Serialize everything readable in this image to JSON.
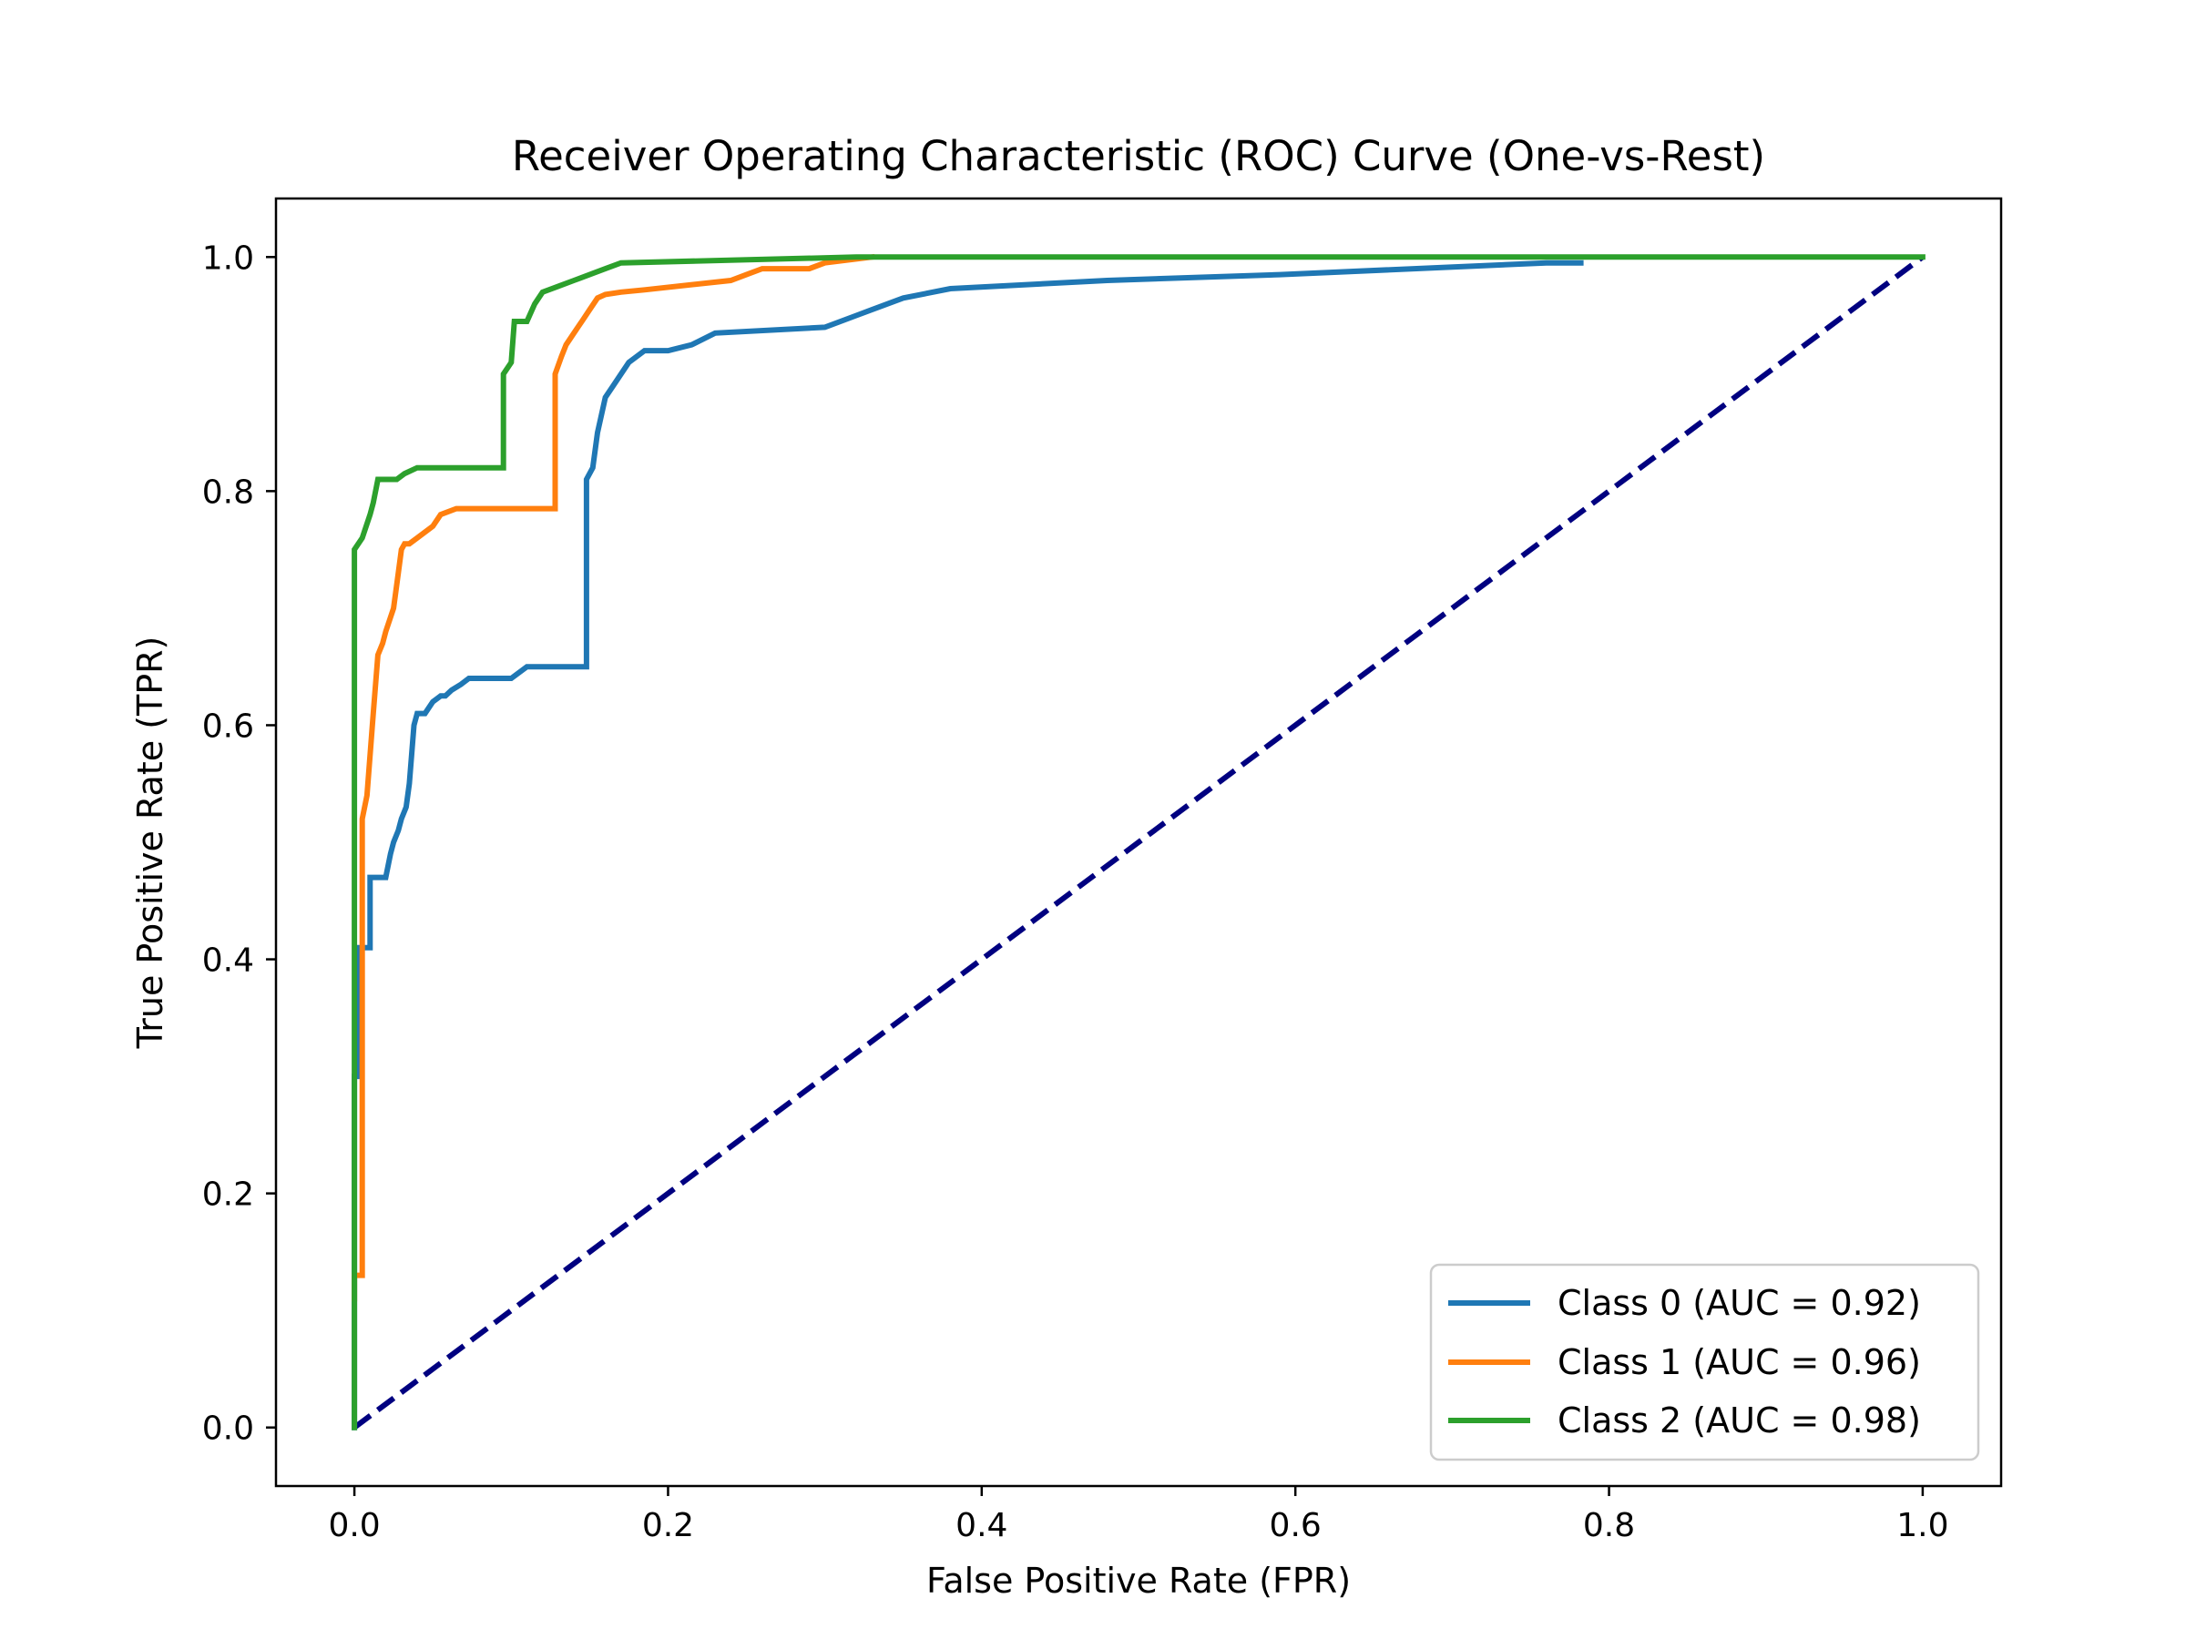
{
  "chart_data": {
    "type": "line",
    "title": "Receiver Operating Characteristic (ROC) Curve (One-vs-Rest)",
    "xlabel": "False Positive Rate (FPR)",
    "ylabel": "True Positive Rate (TPR)",
    "xlim": [
      -0.05,
      1.05
    ],
    "ylim": [
      -0.05,
      1.05
    ],
    "x_ticks": [
      "0.0",
      "0.2",
      "0.4",
      "0.6",
      "0.8",
      "1.0"
    ],
    "y_ticks": [
      "0.0",
      "0.2",
      "0.4",
      "0.6",
      "0.8",
      "1.0"
    ],
    "grid": false,
    "legend_position": "lower-right",
    "chance_line": {
      "style": "dashed",
      "color": "#000080",
      "x": [
        0,
        1
      ],
      "y": [
        0,
        1
      ]
    },
    "series": [
      {
        "name": "Class 0 (AUC = 0.92)",
        "color": "#1f77b4",
        "x": [
          0,
          0,
          0.003,
          0.003,
          0.01,
          0.01,
          0.02,
          0.023,
          0.025,
          0.028,
          0.03,
          0.033,
          0.035,
          0.038,
          0.04,
          0.042,
          0.045,
          0.05,
          0.055,
          0.058,
          0.062,
          0.068,
          0.073,
          0.08,
          0.1,
          0.11,
          0.148,
          0.148,
          0.152,
          0.155,
          0.16,
          0.165,
          0.17,
          0.175,
          0.185,
          0.2,
          0.215,
          0.23,
          0.3,
          0.32,
          0.33,
          0.35,
          0.38,
          0.48,
          0.59,
          0.76,
          0.782
        ],
        "y": [
          0,
          0.3,
          0.3,
          0.41,
          0.41,
          0.47,
          0.47,
          0.49,
          0.5,
          0.51,
          0.52,
          0.53,
          0.55,
          0.6,
          0.61,
          0.61,
          0.61,
          0.62,
          0.625,
          0.625,
          0.63,
          0.635,
          0.64,
          0.64,
          0.64,
          0.65,
          0.65,
          0.81,
          0.82,
          0.85,
          0.88,
          0.89,
          0.9,
          0.91,
          0.92,
          0.92,
          0.925,
          0.935,
          0.94,
          0.95,
          0.955,
          0.965,
          0.973,
          0.98,
          0.985,
          0.995,
          0.995
        ]
      },
      {
        "name": "Class 1 (AUC = 0.96)",
        "color": "#ff7f0e",
        "x": [
          0,
          0,
          0.005,
          0.005,
          0.008,
          0.008,
          0.012,
          0.015,
          0.018,
          0.02,
          0.025,
          0.028,
          0.03,
          0.032,
          0.035,
          0.04,
          0.05,
          0.055,
          0.065,
          0.08,
          0.11,
          0.128,
          0.128,
          0.132,
          0.135,
          0.14,
          0.145,
          0.15,
          0.155,
          0.16,
          0.17,
          0.185,
          0.24,
          0.25,
          0.26,
          0.29,
          0.3,
          0.33
        ],
        "y": [
          0.11,
          0.13,
          0.13,
          0.52,
          0.54,
          0.54,
          0.61,
          0.66,
          0.67,
          0.68,
          0.7,
          0.73,
          0.75,
          0.755,
          0.755,
          0.76,
          0.77,
          0.78,
          0.785,
          0.785,
          0.785,
          0.785,
          0.9,
          0.915,
          0.925,
          0.935,
          0.945,
          0.955,
          0.965,
          0.968,
          0.97,
          0.972,
          0.98,
          0.985,
          0.99,
          0.99,
          0.995,
          1.0
        ]
      },
      {
        "name": "Class 2 (AUC = 0.98)",
        "color": "#2ca02c",
        "x": [
          0,
          0,
          0.005,
          0.01,
          0.012,
          0.015,
          0.027,
          0.032,
          0.04,
          0.06,
          0.095,
          0.095,
          0.1,
          0.102,
          0.11,
          0.115,
          0.12,
          0.13,
          0.14,
          0.16,
          0.17,
          0.32,
          1.0
        ],
        "y": [
          0,
          0.75,
          0.76,
          0.78,
          0.79,
          0.81,
          0.81,
          0.815,
          0.82,
          0.82,
          0.82,
          0.9,
          0.91,
          0.945,
          0.945,
          0.96,
          0.97,
          0.975,
          0.98,
          0.99,
          0.995,
          1.0,
          1.0
        ]
      }
    ]
  }
}
